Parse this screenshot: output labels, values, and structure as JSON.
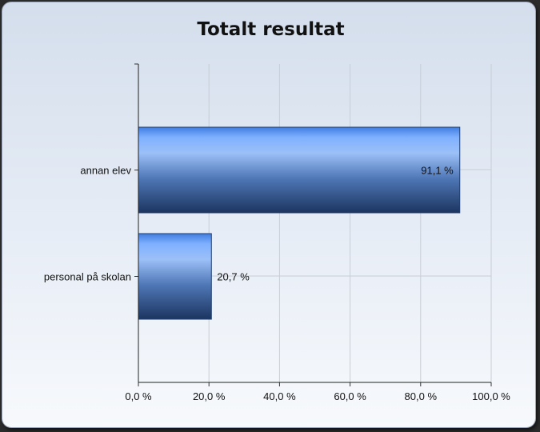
{
  "chart_data": {
    "type": "bar",
    "orientation": "horizontal",
    "title": "Totalt resultat",
    "categories": [
      "annan elev",
      "personal på skolan"
    ],
    "values": [
      91.1,
      20.7
    ],
    "value_labels": [
      "91,1 %",
      "20,7 %"
    ],
    "xlim": [
      0,
      100
    ],
    "x_ticks": [
      0,
      20,
      40,
      60,
      80,
      100
    ],
    "x_tick_labels": [
      "0,0 %",
      "20,0 %",
      "40,0 %",
      "60,0 %",
      "80,0 %",
      "100,0 %"
    ],
    "grid": true,
    "legend": "none",
    "colors": {
      "bar_light": "#7fb0ff",
      "bar_mid": "#5a8fe0",
      "bar_dark": "#1e3a66"
    }
  }
}
